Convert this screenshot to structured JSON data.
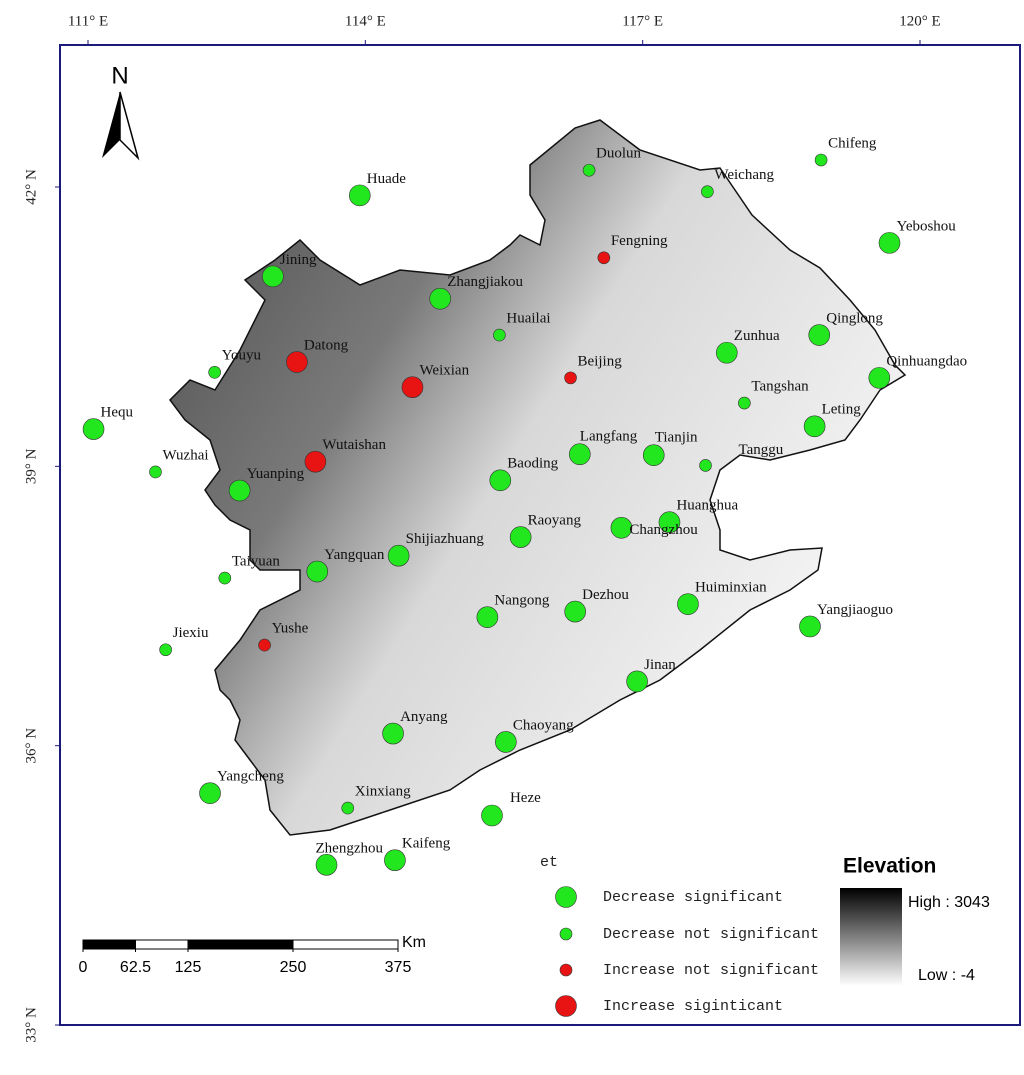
{
  "map": {
    "north": "N",
    "x_axis": {
      "ticks": [
        {
          "value": 111,
          "label": "111° E"
        },
        {
          "value": 114,
          "label": "114° E"
        },
        {
          "value": 117,
          "label": "117° E"
        },
        {
          "value": 120,
          "label": "120° E"
        }
      ]
    },
    "y_axis": {
      "ticks": [
        {
          "value": 42,
          "label": "42° N"
        },
        {
          "value": 39,
          "label": "39° N"
        },
        {
          "value": 36,
          "label": "36° N"
        },
        {
          "value": 33,
          "label": "33° N"
        }
      ]
    },
    "legend": {
      "title": "et",
      "items": [
        {
          "label": "Decrease significant",
          "color": "#22e61e",
          "size": "large"
        },
        {
          "label": "Decrease not significant",
          "color": "#22e61e",
          "size": "small"
        },
        {
          "label": "Increase not significant",
          "color": "#e81414",
          "size": "small"
        },
        {
          "label": "Increase siginticant",
          "color": "#e81414",
          "size": "large"
        }
      ]
    },
    "elevation": {
      "title": "Elevation",
      "high": "High : 3043",
      "low": "Low : -4"
    },
    "scale_bar": {
      "unit": "Km",
      "ticks": [
        0,
        62.5,
        125,
        250,
        375
      ]
    },
    "stations": [
      {
        "name": "Huade",
        "lon": 113.94,
        "lat": 41.91,
        "class": 0
      },
      {
        "name": "Duolun",
        "lon": 116.42,
        "lat": 42.18,
        "class": 1
      },
      {
        "name": "Chifeng",
        "lon": 118.93,
        "lat": 42.29,
        "class": 1
      },
      {
        "name": "Weichang",
        "lon": 117.7,
        "lat": 41.95,
        "class": 1
      },
      {
        "name": "Yeboshou",
        "lon": 119.67,
        "lat": 41.4,
        "class": 0
      },
      {
        "name": "Fengning",
        "lon": 116.58,
        "lat": 41.24,
        "class": 2
      },
      {
        "name": "Jining",
        "lon": 113.0,
        "lat": 41.04,
        "class": 0
      },
      {
        "name": "Zhangjiakou",
        "lon": 114.81,
        "lat": 40.8,
        "class": 0
      },
      {
        "name": "Huailai",
        "lon": 115.45,
        "lat": 40.41,
        "class": 1
      },
      {
        "name": "Qinglong",
        "lon": 118.91,
        "lat": 40.41,
        "class": 0
      },
      {
        "name": "Zunhua",
        "lon": 117.91,
        "lat": 40.22,
        "class": 0
      },
      {
        "name": "Datong",
        "lon": 113.26,
        "lat": 40.12,
        "class": 3
      },
      {
        "name": "Youyu",
        "lon": 112.37,
        "lat": 40.01,
        "class": 1
      },
      {
        "name": "Weixian",
        "lon": 114.51,
        "lat": 39.85,
        "class": 3
      },
      {
        "name": "Beijing",
        "lon": 116.22,
        "lat": 39.95,
        "class": 2
      },
      {
        "name": "Qinhuangdao",
        "lon": 119.56,
        "lat": 39.95,
        "class": 0
      },
      {
        "name": "Tangshan",
        "lon": 118.1,
        "lat": 39.68,
        "class": 1
      },
      {
        "name": "Hequ",
        "lon": 111.06,
        "lat": 39.4,
        "class": 0
      },
      {
        "name": "Leting",
        "lon": 118.86,
        "lat": 39.43,
        "class": 0
      },
      {
        "name": "Wutaishan",
        "lon": 113.46,
        "lat": 39.05,
        "class": 3
      },
      {
        "name": "Wuzhai",
        "lon": 111.73,
        "lat": 38.94,
        "class": 1
      },
      {
        "name": "Langfang",
        "lon": 116.32,
        "lat": 39.13,
        "class": 0
      },
      {
        "name": "Tianjin",
        "lon": 117.12,
        "lat": 39.12,
        "class": 0
      },
      {
        "name": "Tanggu",
        "lon": 117.68,
        "lat": 39.01,
        "class": 1
      },
      {
        "name": "Yuanping",
        "lon": 112.64,
        "lat": 38.74,
        "class": 0
      },
      {
        "name": "Baoding",
        "lon": 115.46,
        "lat": 38.85,
        "class": 0
      },
      {
        "name": "Huanghua",
        "lon": 117.29,
        "lat": 38.4,
        "class": 0
      },
      {
        "name": "Changzhou",
        "lon": 116.77,
        "lat": 38.34,
        "class": 0
      },
      {
        "name": "Raoyang",
        "lon": 115.68,
        "lat": 38.24,
        "class": 0
      },
      {
        "name": "Shijiazhuang",
        "lon": 114.36,
        "lat": 38.04,
        "class": 0
      },
      {
        "name": "Yangquan",
        "lon": 113.48,
        "lat": 37.87,
        "class": 0
      },
      {
        "name": "Taiyuan",
        "lon": 112.48,
        "lat": 37.8,
        "class": 1
      },
      {
        "name": "Dezhou",
        "lon": 116.27,
        "lat": 37.44,
        "class": 0
      },
      {
        "name": "Nangong",
        "lon": 115.32,
        "lat": 37.38,
        "class": 0
      },
      {
        "name": "Huiminxian",
        "lon": 117.49,
        "lat": 37.52,
        "class": 0
      },
      {
        "name": "Yangjiaoguo",
        "lon": 118.81,
        "lat": 37.28,
        "class": 0
      },
      {
        "name": "Jiexiu",
        "lon": 111.84,
        "lat": 37.03,
        "class": 1
      },
      {
        "name": "Yushe",
        "lon": 112.91,
        "lat": 37.08,
        "class": 2
      },
      {
        "name": "Jinan",
        "lon": 116.94,
        "lat": 36.69,
        "class": 0
      },
      {
        "name": "Anyang",
        "lon": 114.3,
        "lat": 36.13,
        "class": 0
      },
      {
        "name": "Chaoyang",
        "lon": 115.52,
        "lat": 36.04,
        "class": 0
      },
      {
        "name": "Yangcheng",
        "lon": 112.32,
        "lat": 35.49,
        "class": 0
      },
      {
        "name": "Xinxiang",
        "lon": 113.81,
        "lat": 35.33,
        "class": 1
      },
      {
        "name": "Heze",
        "lon": 115.37,
        "lat": 35.25,
        "class": 0
      },
      {
        "name": "Zhengzhou",
        "lon": 113.58,
        "lat": 34.72,
        "class": 0
      },
      {
        "name": "Kaifeng",
        "lon": 114.32,
        "lat": 34.77,
        "class": 0
      }
    ]
  }
}
